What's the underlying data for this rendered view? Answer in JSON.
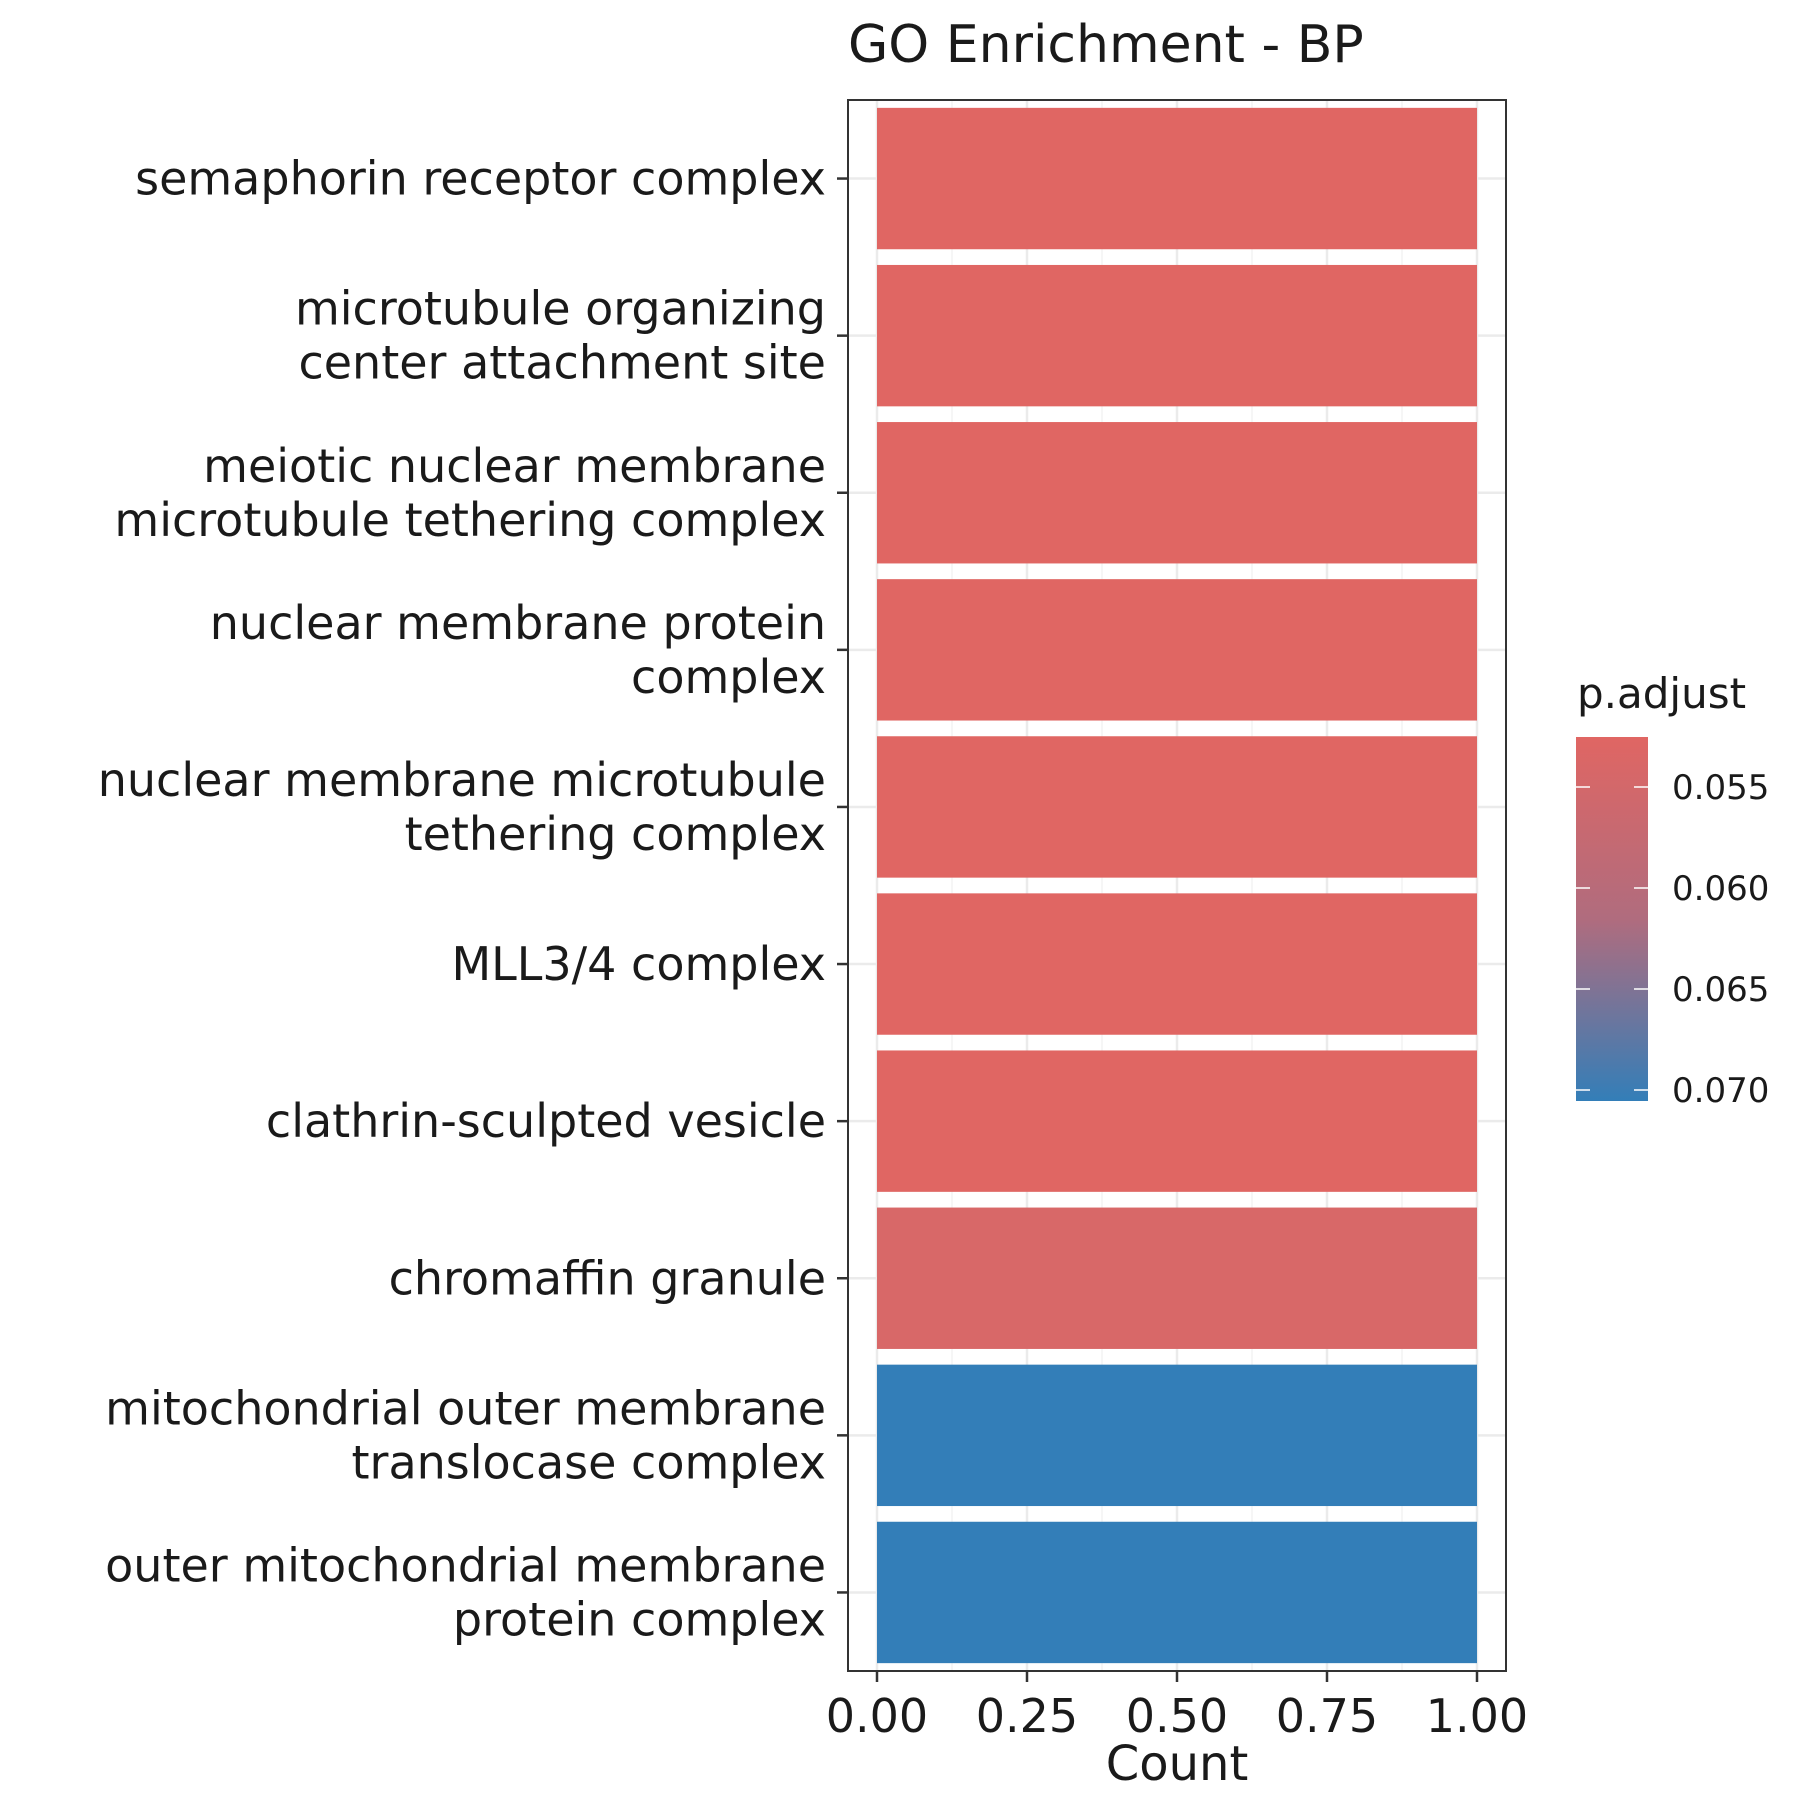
{
  "chart_data": {
    "type": "bar",
    "orientation": "horizontal",
    "title": "GO Enrichment - BP",
    "xlabel": "Count",
    "ylabel": "",
    "xlim": [
      0,
      1
    ],
    "x_ticks": [
      "0.00",
      "0.25",
      "0.50",
      "0.75",
      "1.00"
    ],
    "x_tick_values": [
      0,
      0.25,
      0.5,
      0.75,
      1.0
    ],
    "grid": true,
    "categories": [
      [
        "semaphorin receptor complex"
      ],
      [
        "microtubule organizing",
        "center attachment site"
      ],
      [
        "meiotic nuclear membrane",
        "microtubule tethering complex"
      ],
      [
        "nuclear membrane protein",
        "complex"
      ],
      [
        "nuclear membrane microtubule",
        "tethering complex"
      ],
      [
        "MLL3/4 complex"
      ],
      [
        "clathrin-sculpted vesicle"
      ],
      [
        "chromaffin granule"
      ],
      [
        "mitochondrial outer membrane",
        "translocase complex"
      ],
      [
        "outer mitochondrial membrane",
        "protein complex"
      ]
    ],
    "values": [
      1,
      1,
      1,
      1,
      1,
      1,
      1,
      1,
      1,
      1
    ],
    "bar_colors": [
      "#e06663",
      "#e06663",
      "#e06663",
      "#e06663",
      "#e06663",
      "#e06663",
      "#e06663",
      "#d86868",
      "#337eb8",
      "#337eb8"
    ],
    "legend": {
      "title": "p.adjust",
      "position": "right",
      "ticks": [
        "0.055",
        "0.060",
        "0.065",
        "0.070"
      ],
      "gradient_top": "#e06663",
      "gradient_mid": "#b06c7e",
      "gradient_bottom": "#337eb8"
    }
  }
}
